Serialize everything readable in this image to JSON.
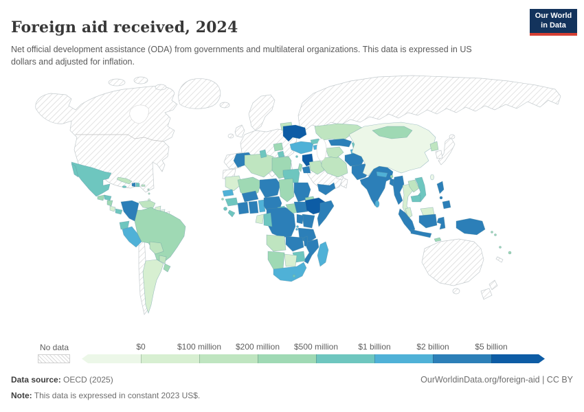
{
  "header": {
    "title": "Foreign aid received, 2024",
    "subtitle": "Net official development assistance (ODA) from governments and multilateral organizations. This data is expressed in US dollars and adjusted for inflation."
  },
  "logo": {
    "line1": "Our World",
    "line2": "in Data",
    "bg_color": "#13335c",
    "accent_color": "#d63f33"
  },
  "legend": {
    "no_data_label": "No data",
    "tick_labels": [
      "$0",
      "$100 million",
      "$200 million",
      "$500 million",
      "$1 billion",
      "$2 billion",
      "$5 billion"
    ]
  },
  "map": {
    "palette": [
      "#ecf7e8",
      "#d7efd1",
      "#bfe5c0",
      "#9fd9b4",
      "#6ec6bf",
      "#4fb1d7",
      "#2c7fb8",
      "#0d5ca5"
    ],
    "no_data_style": {
      "fill": "#ffffff",
      "hatch_line": "#d6d6d6",
      "border": "#c9cfd2"
    },
    "country_border": "#5d8fa0",
    "ocean": "#ffffff"
  },
  "footer": {
    "source_label": "Data source:",
    "source_value": " OECD (2025)",
    "note_label": "Note:",
    "note_value": " This data is expressed in constant 2023 US$.",
    "link": "OurWorldinData.org/foreign-aid | CC BY"
  },
  "chart_data": {
    "type": "choropleth_map",
    "title": "Foreign aid received, 2024",
    "metric": "Net official development assistance (ODA) received, constant 2023 US$",
    "year": 2024,
    "bins": [
      {
        "range": "< $0",
        "color": "#ecf7e8"
      },
      {
        "range": "$0 - $100 million",
        "color": "#d7efd1"
      },
      {
        "range": "$100 - $200 million",
        "color": "#bfe5c0"
      },
      {
        "range": "$200 - $500 million",
        "color": "#9fd9b4"
      },
      {
        "range": "$500 million - $1 billion",
        "color": "#6ec6bf"
      },
      {
        "range": "$1 - $2 billion",
        "color": "#4fb1d7"
      },
      {
        "range": "$2 - $5 billion",
        "color": "#2c7fb8"
      },
      {
        "range": "> $5 billion",
        "color": "#0d5ca5"
      }
    ],
    "countries_by_bin": {
      "over_5_billion": [
        "Ukraine",
        "Syria",
        "Ethiopia"
      ],
      "2_to_5_billion": [
        "India",
        "Pakistan",
        "Afghanistan",
        "Bangladesh",
        "Myanmar",
        "Indonesia",
        "Philippines",
        "Papua New Guinea",
        "Uzbekistan",
        "Jordan",
        "Yemen",
        "Morocco",
        "Niger",
        "Nigeria",
        "Ghana",
        "Cote d'Ivoire",
        "Burkina Faso",
        "Sudan",
        "South Sudan",
        "Somalia",
        "Kenya",
        "Uganda",
        "DR Congo",
        "Tanzania",
        "Zambia",
        "Malawi",
        "Mozambique",
        "Colombia",
        "Haiti"
      ],
      "1_to_2_billion": [
        "Turkey",
        "South Africa",
        "Madagascar",
        "Peru",
        "Senegal",
        "Nepal",
        "Sri Lanka",
        "Togo",
        "Benin",
        "Tajikistan",
        "Armenia",
        "Moldova",
        "Rwanda",
        "Burundi"
      ],
      "500m_to_1_billion": [
        "Mexico",
        "Egypt",
        "Tunisia",
        "Zimbabwe",
        "Vietnam",
        "Cambodia",
        "Guinea",
        "Cameroon",
        "Ecuador",
        "Georgia",
        "Azerbaijan",
        "Kyrgyzstan",
        "Honduras",
        "Panama",
        "Dominican Republic",
        "Jamaica",
        "Sierra Leone",
        "Liberia",
        "Congo",
        "Lesotho",
        "Albania",
        "Cyprus",
        "Djibouti"
      ],
      "200m_to_500m": [
        "Brazil",
        "Libya",
        "Mali",
        "Chad",
        "Central African Republic",
        "Eritrea",
        "Mongolia",
        "Serbia",
        "Bosnia and Herzegovina",
        "Uruguay",
        "Guatemala",
        "Nicaragua",
        "Namibia",
        "Bhutan",
        "Timor-Leste",
        "Solomon Islands",
        "Fiji",
        "Israel"
      ],
      "100m_to_200m": [
        "Kazakhstan",
        "Belarus",
        "Venezuela",
        "Bolivia",
        "Paraguay",
        "Iran",
        "Iraq",
        "Turkmenistan",
        "Laos",
        "North Korea",
        "Algeria",
        "Angola",
        "Cuba",
        "Puerto Rico"
      ],
      "0_to_100m": [
        "Argentina",
        "Thailand",
        "Malaysia",
        "Botswana",
        "Gabon",
        "Guyana",
        "Mauritania",
        "Costa Rica"
      ],
      "below_0": [
        "China",
        "Taiwan"
      ],
      "no_data": [
        "United States",
        "Canada",
        "Greenland",
        "Iceland",
        "Western Europe",
        "Russia",
        "Saudi Arabia",
        "Oman",
        "United Arab Emirates",
        "Chile",
        "Japan",
        "South Korea",
        "Australia",
        "New Zealand",
        "French Guiana",
        "Western Sahara",
        "New Caledonia",
        "Greece"
      ]
    }
  }
}
